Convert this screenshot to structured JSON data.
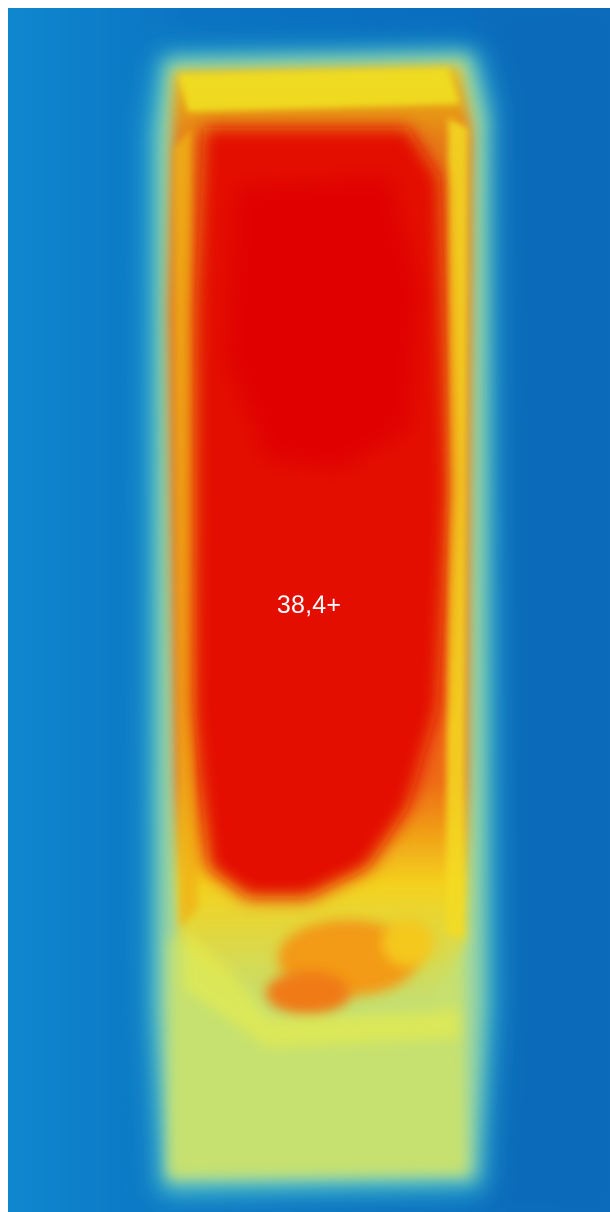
{
  "thermal_image": {
    "temperature_readout": "38,4+",
    "palette": {
      "background_cold": "#0a6fbf",
      "edge_cyan": "#35b4c8",
      "cool_yellow_green": "#c8e46a",
      "warm_yellow": "#f2e21f",
      "warm_orange": "#f0650f",
      "hot_red": "#e10a00"
    }
  }
}
